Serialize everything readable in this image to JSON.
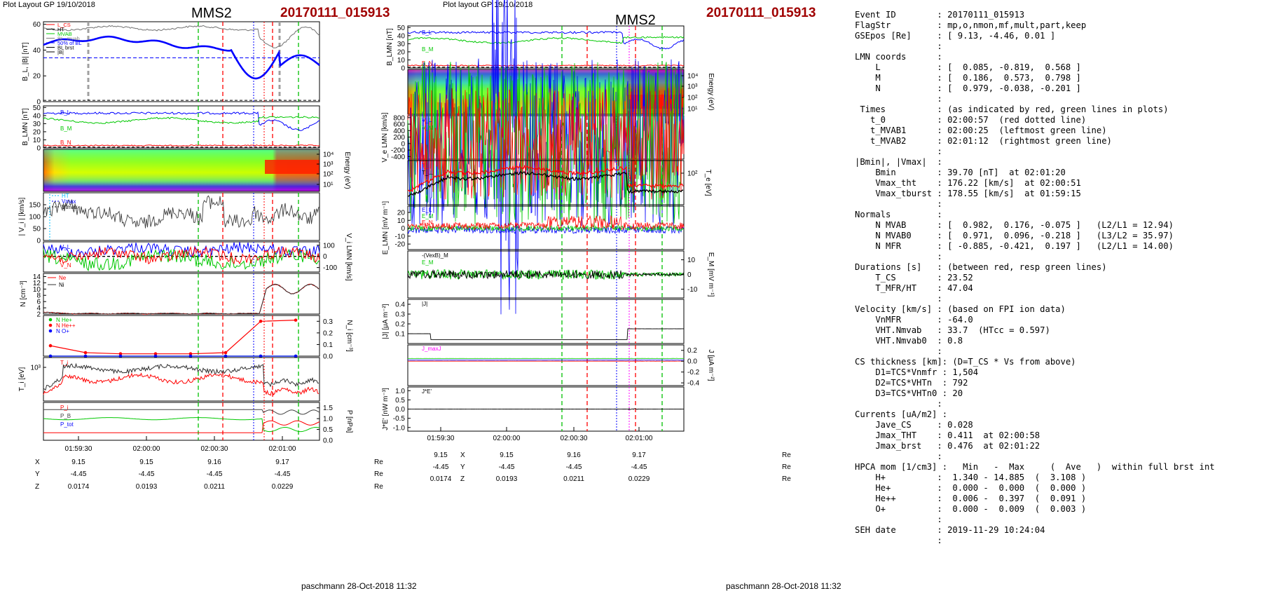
{
  "left_panel": {
    "header_left": "Plot Layout GP 19/10/2018",
    "mms": "MMS2",
    "event": "20170111_015913",
    "footer": "paschmann 28-Oct-2018 11:32"
  },
  "mid_panel": {
    "header_left": "Plot layout GP 19/10/2018",
    "mms": "MMS2",
    "event": "20170111_015913",
    "footer": "paschmann 28-Oct-2018 11:32"
  },
  "time_axis": {
    "ticks": [
      "01:59:30",
      "02:00:00",
      "02:00:30",
      "02:01:00"
    ]
  },
  "coords": {
    "labels": [
      "X",
      "Y",
      "Z"
    ],
    "unit": "Re",
    "X": [
      "9.15",
      "9.15",
      "9.16",
      "9.17"
    ],
    "Y": [
      "-4.45",
      "-4.45",
      "-4.45",
      "-4.45"
    ],
    "Z": [
      "0.0174",
      "0.0193",
      "0.0211",
      "0.0229"
    ]
  },
  "colors": {
    "event_red": "#a00000",
    "blue": "#0000ff",
    "green": "#00c800",
    "red": "#ff0000",
    "black": "#000000",
    "grey": "#808080",
    "magenta": "#ff00ff"
  },
  "chart_data": [
    {
      "type": "line",
      "panel": "left-1",
      "ylabel": "B_L, |B| [nT]",
      "ylim": [
        0,
        60
      ],
      "yticks": [
        "60",
        "40",
        "20",
        "0"
      ],
      "legend": [
        "L_CS",
        "HT",
        "MVAB",
        "BL_mvab",
        "50% of BL",
        "BL brst",
        "|B|"
      ]
    },
    {
      "type": "line",
      "panel": "left-2",
      "ylabel": "B_LMN [nT]",
      "ylim": [
        0,
        50
      ],
      "yticks": [
        "50",
        "40",
        "30",
        "20",
        "10",
        "0"
      ],
      "series": [
        {
          "name": "B_L"
        },
        {
          "name": "B_M"
        },
        {
          "name": "B_N"
        }
      ]
    },
    {
      "type": "heatmap",
      "panel": "left-3",
      "ylabel": "Energy (eV)",
      "yticks": [
        "10^4",
        "10^3",
        "10^2",
        "10^1"
      ]
    },
    {
      "type": "line",
      "panel": "left-4",
      "ylabel": "| V_i | [km/s]",
      "ylim": [
        0,
        200
      ],
      "yticks": [
        "150",
        "100",
        "50",
        "0"
      ],
      "legend": [
        "HT",
        "Vmax",
        "Vtmax"
      ]
    },
    {
      "type": "line",
      "panel": "left-5",
      "ylabel": "V_i LMN [km/s]",
      "yticks": [
        "100",
        "0",
        "-100"
      ],
      "series": [
        {
          "name": "V_L"
        },
        {
          "name": "V_M"
        },
        {
          "name": "V_N"
        }
      ]
    },
    {
      "type": "line",
      "panel": "left-6",
      "ylabel": "N [cm^-3]",
      "ylim": [
        2,
        14
      ],
      "yticks": [
        "14",
        "12",
        "10",
        "8",
        "6",
        "4",
        "2"
      ],
      "series": [
        {
          "name": "Ne"
        },
        {
          "name": "Ni"
        }
      ]
    },
    {
      "type": "line",
      "panel": "left-7",
      "ylabel": "N_i [cm^-3]",
      "ylim": [
        0,
        0.35
      ],
      "yticks": [
        "0.3",
        "0.2",
        "0.1",
        "0.0"
      ],
      "series": [
        {
          "name": "N He+",
          "values": [
            0.0,
            0.0,
            0.0,
            0.0,
            0.0,
            0.0,
            0.0,
            0.0
          ]
        },
        {
          "name": "N He++",
          "values": [
            0.09,
            0.03,
            0.02,
            0.02,
            0.02,
            0.03,
            0.3,
            0.31
          ]
        },
        {
          "name": "N O+",
          "values": [
            0.0,
            0.0,
            0.0,
            0.0,
            0.0,
            0.0,
            0.0,
            0.0
          ]
        }
      ]
    },
    {
      "type": "line",
      "panel": "left-8",
      "ylabel": "T_i [eV]",
      "yticks": [
        "10^3"
      ],
      "series": [
        {
          "name": "T_i"
        }
      ]
    },
    {
      "type": "line",
      "panel": "left-9",
      "ylabel": "P [nPa]",
      "ylim": [
        0,
        1.75
      ],
      "yticks": [
        "1.5",
        "1.0",
        "0.5",
        "0.0"
      ],
      "series": [
        {
          "name": "P_i"
        },
        {
          "name": "P_B"
        },
        {
          "name": "P_tot"
        }
      ]
    },
    {
      "type": "line",
      "panel": "mid-1",
      "ylabel": "B_LMN [nT]",
      "ylim": [
        0,
        50
      ],
      "yticks": [
        "50",
        "40",
        "30",
        "20",
        "10",
        "0"
      ],
      "series": [
        {
          "name": "B_L"
        },
        {
          "name": "B_M"
        },
        {
          "name": "B_N"
        }
      ]
    },
    {
      "type": "heatmap",
      "panel": "mid-2",
      "ylabel": "Energy (eV)",
      "yticks": [
        "10^4",
        "10^3",
        "10^2",
        "10^1"
      ]
    },
    {
      "type": "line",
      "panel": "mid-3",
      "ylabel": "V_e LMN [km/s]",
      "yticks": [
        "800",
        "600",
        "400",
        "200",
        "0",
        "-200",
        "-400"
      ],
      "series": [
        {
          "name": "V_L"
        },
        {
          "name": "V_M"
        },
        {
          "name": "V_N"
        }
      ]
    },
    {
      "type": "line",
      "panel": "mid-4",
      "ylabel": "T_e [eV]",
      "yticks": [
        "10^2"
      ],
      "series": [
        {
          "name": "T_||"
        },
        {
          "name": "T_⊥"
        }
      ]
    },
    {
      "type": "line",
      "panel": "mid-5",
      "ylabel": "E_LMN [mV m^-1]",
      "yticks": [
        "20",
        "10",
        "0",
        "-10",
        "-20"
      ],
      "series": [
        {
          "name": "E_L"
        },
        {
          "name": "E_M"
        },
        {
          "name": "E_N"
        }
      ]
    },
    {
      "type": "line",
      "panel": "mid-6",
      "ylabel": "E_M [mV m^-1]",
      "yticks": [
        "10",
        "0",
        "-10"
      ],
      "series": [
        {
          "name": "-(VexB)_M"
        },
        {
          "name": "E_M"
        }
      ]
    },
    {
      "type": "line",
      "panel": "mid-7",
      "ylabel": "|J| [μA m^-2]",
      "ylim": [
        0,
        0.45
      ],
      "yticks": [
        "0.4",
        "0.3",
        "0.2",
        "0.1"
      ],
      "series": [
        {
          "name": "|J|"
        }
      ]
    },
    {
      "type": "line",
      "panel": "mid-8",
      "ylabel": "J [μA m^-2]",
      "yticks": [
        "0.2",
        "0.0",
        "-0.2",
        "-0.4"
      ],
      "legend": [
        "J_maxJ"
      ]
    },
    {
      "type": "line",
      "panel": "mid-9",
      "ylabel": "J*E' [nW m^-3]",
      "ylim": [
        -1.2,
        1.2
      ],
      "yticks": [
        "1.0",
        "0.5",
        "0.0",
        "-0.5",
        "-1.0"
      ],
      "series": [
        {
          "name": "J*E'"
        }
      ]
    }
  ],
  "info_lines": [
    "Event ID        : 20170111_015913",
    "FlagStr         : mp,o,nmon,mf,mult,part,keep",
    "GSEpos [Re]     : [ 9.13, -4.46, 0.01 ]",
    "                :",
    "LMN coords      :",
    "    L           : [  0.085, -0.819,  0.568 ]",
    "    M           : [  0.186,  0.573,  0.798 ]",
    "    N           : [  0.979, -0.038, -0.201 ]",
    "                :",
    " Times          : (as indicated by red, green lines in plots)",
    "   t_0          : 02:00:57  (red dotted line)",
    "   t_MVAB1      : 02:00:25  (leftmost green line)",
    "   t_MVAB2      : 02:01:12  (rightmost green line)",
    "                :",
    "|Bmin|, |Vmax|  :",
    "    Bmin        : 39.70 [nT]  at 02:01:20",
    "    Vmax_tht    : 176.22 [km/s]  at 02:00:51",
    "    Vmax_tburst : 178.55 [km/s]  at 01:59:15",
    "                :",
    "Normals         :",
    "    N MVAB      : [  0.982,  0.176, -0.075 ]   (L2/L1 = 12.94)",
    "    N MVAB0     : [  0.971,  0.096, -0.218 ]   (L3/L2 = 35.97)",
    "    N MFR       : [ -0.885, -0.421,  0.197 ]   (L2/L1 = 14.00)",
    "                :",
    "Durations [s]   : (between red, resp green lines)",
    "    T_CS        : 23.52",
    "    T_MFR/HT    : 47.04",
    "                :",
    "Velocity [km/s] : (based on FPI ion data)",
    "    VnMFR       : -64.0",
    "    VHT.Nmvab   : 33.7  (HTcc = 0.597)",
    "    VHT.Nmvab0  : 0.8",
    "                :",
    "CS thickness [km]: (D=T_CS * Vs from above)",
    "    D1=TCS*Vnmfr : 1,504",
    "    D2=TCS*VHTn  : 792",
    "    D3=TCS*VHTn0 : 20",
    "                :",
    "Currents [uA/m2] :",
    "    Jave_CS     : 0.028",
    "    Jmax_THT    : 0.411  at 02:00:58",
    "    Jmax_brst   : 0.476  at 02:01:22",
    "                :",
    "HPCA mom [1/cm3] :   Min   -  Max     (  Ave   )  within full brst int",
    "    H+          :  1.340 - 14.885  (  3.108 )",
    "    He+         :  0.000 -  0.000  (  0.000 )",
    "    He++        :  0.006 -  0.397  (  0.091 )",
    "    O+          :  0.000 -  0.009  (  0.003 )",
    "                :",
    "SEH date        : 2019-11-29 10:24:04",
    "                :"
  ]
}
